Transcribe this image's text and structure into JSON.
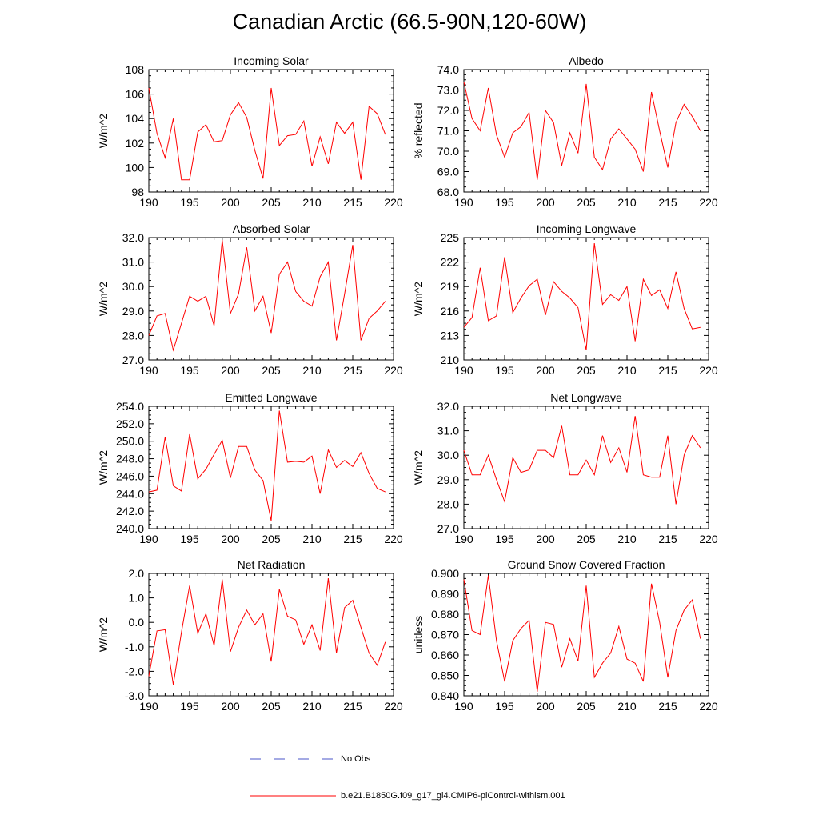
{
  "title": "Canadian Arctic (66.5-90N,120-60W)",
  "legend": {
    "obs_label": "No Obs",
    "model_label": "b.e21.B1850G.f09_g17_gl4.CMIP6-piControl-withism.001",
    "obs_color": "#4a55c8",
    "model_color": "#ff0000"
  },
  "chart_data": [
    {
      "type": "line",
      "title": "Incoming Solar",
      "xlabel": "",
      "ylabel": "W/m^2",
      "xlim": [
        190,
        220
      ],
      "ylim": [
        98,
        108
      ],
      "xticks": [
        190,
        195,
        200,
        205,
        210,
        215,
        220
      ],
      "yticks": [
        "98",
        "100",
        "102",
        "104",
        "106",
        "108"
      ],
      "x": [
        190,
        191,
        192,
        193,
        194,
        195,
        196,
        197,
        198,
        199,
        200,
        201,
        202,
        203,
        204,
        205,
        206,
        207,
        208,
        209,
        210,
        211,
        212,
        213,
        214,
        215,
        216,
        217,
        218,
        219
      ],
      "series": [
        {
          "name": "b.e21.B1850G.f09_g17_gl4.CMIP6-piControl-withism.001",
          "values": [
            106.5,
            102.8,
            100.8,
            104.0,
            99.0,
            99.0,
            102.9,
            103.5,
            102.1,
            102.2,
            104.3,
            105.3,
            104.1,
            101.4,
            99.1,
            106.5,
            101.8,
            102.6,
            102.7,
            103.8,
            100.1,
            102.5,
            100.3,
            103.7,
            102.8,
            103.7,
            99.0,
            105.0,
            104.4,
            102.7
          ]
        }
      ]
    },
    {
      "type": "line",
      "title": "Albedo",
      "xlabel": "",
      "ylabel": "% reflected",
      "xlim": [
        190,
        220
      ],
      "ylim": [
        68,
        74
      ],
      "xticks": [
        190,
        195,
        200,
        205,
        210,
        215,
        220
      ],
      "yticks": [
        "68.0",
        "69.0",
        "70.0",
        "71.0",
        "72.0",
        "73.0",
        "74.0"
      ],
      "x": [
        190,
        191,
        192,
        193,
        194,
        195,
        196,
        197,
        198,
        199,
        200,
        201,
        202,
        203,
        204,
        205,
        206,
        207,
        208,
        209,
        210,
        211,
        212,
        213,
        214,
        215,
        216,
        217,
        218,
        219
      ],
      "series": [
        {
          "name": "b.e21.B1850G.f09_g17_gl4.CMIP6-piControl-withism.001",
          "values": [
            73.4,
            71.6,
            71.0,
            73.1,
            70.8,
            69.7,
            70.9,
            71.2,
            71.9,
            68.6,
            72.0,
            71.4,
            69.3,
            70.9,
            69.9,
            73.3,
            69.7,
            69.1,
            70.6,
            71.1,
            70.6,
            70.1,
            69.0,
            72.9,
            71.0,
            69.2,
            71.4,
            72.3,
            71.7,
            71.0
          ]
        }
      ]
    },
    {
      "type": "line",
      "title": "Absorbed Solar",
      "xlabel": "",
      "ylabel": "W/m^2",
      "xlim": [
        190,
        220
      ],
      "ylim": [
        27,
        32
      ],
      "xticks": [
        190,
        195,
        200,
        205,
        210,
        215,
        220
      ],
      "yticks": [
        "27.0",
        "28.0",
        "29.0",
        "30.0",
        "31.0",
        "32.0"
      ],
      "x": [
        190,
        191,
        192,
        193,
        194,
        195,
        196,
        197,
        198,
        199,
        200,
        201,
        202,
        203,
        204,
        205,
        206,
        207,
        208,
        209,
        210,
        211,
        212,
        213,
        214,
        215,
        216,
        217,
        218,
        219
      ],
      "series": [
        {
          "name": "b.e21.B1850G.f09_g17_gl4.CMIP6-piControl-withism.001",
          "values": [
            28.0,
            28.8,
            28.9,
            27.4,
            28.5,
            29.6,
            29.4,
            29.6,
            28.4,
            31.9,
            28.9,
            29.7,
            31.6,
            29.0,
            29.6,
            28.1,
            30.5,
            31.0,
            29.8,
            29.4,
            29.2,
            30.4,
            31.0,
            27.8,
            29.7,
            31.7,
            27.8,
            28.7,
            29.0,
            29.4
          ]
        }
      ]
    },
    {
      "type": "line",
      "title": "Incoming Longwave",
      "xlabel": "",
      "ylabel": "W/m^2",
      "xlim": [
        190,
        220
      ],
      "ylim": [
        210,
        225
      ],
      "xticks": [
        190,
        195,
        200,
        205,
        210,
        215,
        220
      ],
      "yticks": [
        "210",
        "213",
        "216",
        "219",
        "222",
        "225"
      ],
      "x": [
        190,
        191,
        192,
        193,
        194,
        195,
        196,
        197,
        198,
        199,
        200,
        201,
        202,
        203,
        204,
        205,
        206,
        207,
        208,
        209,
        210,
        211,
        212,
        213,
        214,
        215,
        216,
        217,
        218,
        219
      ],
      "series": [
        {
          "name": "b.e21.B1850G.f09_g17_gl4.CMIP6-piControl-withism.001",
          "values": [
            214.0,
            215.2,
            221.3,
            214.8,
            215.4,
            222.6,
            215.8,
            217.6,
            219.1,
            219.9,
            215.5,
            219.6,
            218.4,
            217.6,
            216.4,
            211.2,
            224.3,
            216.8,
            218.0,
            217.3,
            219.0,
            212.3,
            219.9,
            217.9,
            218.6,
            216.3,
            220.8,
            216.3,
            213.8,
            214.0
          ]
        }
      ]
    },
    {
      "type": "line",
      "title": "Emitted Longwave",
      "xlabel": "",
      "ylabel": "W/m^2",
      "xlim": [
        190,
        220
      ],
      "ylim": [
        240,
        254
      ],
      "xticks": [
        190,
        195,
        200,
        205,
        210,
        215,
        220
      ],
      "yticks": [
        "240.0",
        "242.0",
        "244.0",
        "246.0",
        "248.0",
        "250.0",
        "252.0",
        "254.0"
      ],
      "x": [
        190,
        191,
        192,
        193,
        194,
        195,
        196,
        197,
        198,
        199,
        200,
        201,
        202,
        203,
        204,
        205,
        206,
        207,
        208,
        209,
        210,
        211,
        212,
        213,
        214,
        215,
        216,
        217,
        218,
        219
      ],
      "series": [
        {
          "name": "b.e21.B1850G.f09_g17_gl4.CMIP6-piControl-withism.001",
          "values": [
            244.2,
            244.4,
            250.5,
            244.9,
            244.3,
            250.8,
            245.7,
            246.8,
            248.5,
            250.1,
            245.8,
            249.4,
            249.4,
            246.7,
            245.5,
            240.9,
            253.5,
            247.6,
            247.7,
            247.6,
            248.3,
            244.0,
            249.0,
            247.0,
            247.8,
            247.1,
            248.7,
            246.3,
            244.6,
            244.2
          ]
        }
      ]
    },
    {
      "type": "line",
      "title": "Net Longwave",
      "xlabel": "",
      "ylabel": "W/m^2",
      "xlim": [
        190,
        220
      ],
      "ylim": [
        27,
        32
      ],
      "xticks": [
        190,
        195,
        200,
        205,
        210,
        215,
        220
      ],
      "yticks": [
        "27.0",
        "28.0",
        "29.0",
        "30.0",
        "31.0",
        "32.0"
      ],
      "x": [
        190,
        191,
        192,
        193,
        194,
        195,
        196,
        197,
        198,
        199,
        200,
        201,
        202,
        203,
        204,
        205,
        206,
        207,
        208,
        209,
        210,
        211,
        212,
        213,
        214,
        215,
        216,
        217,
        218,
        219
      ],
      "series": [
        {
          "name": "b.e21.B1850G.f09_g17_gl4.CMIP6-piControl-withism.001",
          "values": [
            30.2,
            29.2,
            29.2,
            30.0,
            29.0,
            28.1,
            29.9,
            29.3,
            29.4,
            30.2,
            30.2,
            29.9,
            31.2,
            29.2,
            29.2,
            29.8,
            29.2,
            30.8,
            29.7,
            30.3,
            29.3,
            31.6,
            29.2,
            29.1,
            29.1,
            30.8,
            28.0,
            30.0,
            30.8,
            30.3
          ]
        }
      ]
    },
    {
      "type": "line",
      "title": "Net Radiation",
      "xlabel": "",
      "ylabel": "W/m^2",
      "xlim": [
        190,
        220
      ],
      "ylim": [
        -3,
        2
      ],
      "xticks": [
        190,
        195,
        200,
        205,
        210,
        215,
        220
      ],
      "yticks": [
        "-3.0",
        "-2.0",
        "-1.0",
        "0.0",
        "1.0",
        "2.0"
      ],
      "x": [
        190,
        191,
        192,
        193,
        194,
        195,
        196,
        197,
        198,
        199,
        200,
        201,
        202,
        203,
        204,
        205,
        206,
        207,
        208,
        209,
        210,
        211,
        212,
        213,
        214,
        215,
        216,
        217,
        218,
        219
      ],
      "series": [
        {
          "name": "b.e21.B1850G.f09_g17_gl4.CMIP6-piControl-withism.001",
          "values": [
            -2.2,
            -0.35,
            -0.3,
            -2.55,
            -0.4,
            1.5,
            -0.45,
            0.35,
            -0.95,
            1.75,
            -1.2,
            -0.2,
            0.5,
            -0.1,
            0.35,
            -1.6,
            1.35,
            0.25,
            0.1,
            -0.9,
            -0.1,
            -1.15,
            1.8,
            -1.25,
            0.6,
            0.9,
            -0.2,
            -1.25,
            -1.75,
            -0.8
          ]
        }
      ]
    },
    {
      "type": "line",
      "title": "Ground Snow Covered Fraction",
      "xlabel": "",
      "ylabel": "unitless",
      "xlim": [
        190,
        220
      ],
      "ylim": [
        0.84,
        0.9
      ],
      "xticks": [
        190,
        195,
        200,
        205,
        210,
        215,
        220
      ],
      "yticks": [
        "0.840",
        "0.850",
        "0.860",
        "0.870",
        "0.880",
        "0.890",
        "0.900"
      ],
      "x": [
        190,
        191,
        192,
        193,
        194,
        195,
        196,
        197,
        198,
        199,
        200,
        201,
        202,
        203,
        204,
        205,
        206,
        207,
        208,
        209,
        210,
        211,
        212,
        213,
        214,
        215,
        216,
        217,
        218,
        219
      ],
      "series": [
        {
          "name": "b.e21.B1850G.f09_g17_gl4.CMIP6-piControl-withism.001",
          "values": [
            0.897,
            0.872,
            0.87,
            0.899,
            0.867,
            0.847,
            0.867,
            0.873,
            0.877,
            0.842,
            0.876,
            0.875,
            0.854,
            0.868,
            0.857,
            0.894,
            0.849,
            0.856,
            0.861,
            0.874,
            0.858,
            0.856,
            0.847,
            0.895,
            0.876,
            0.849,
            0.872,
            0.882,
            0.887,
            0.868
          ]
        }
      ]
    }
  ]
}
